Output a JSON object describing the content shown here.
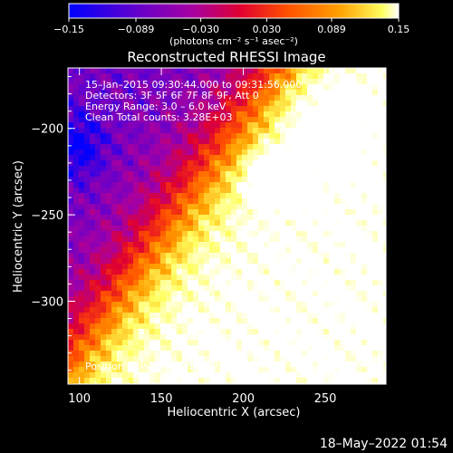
{
  "chart_data": {
    "type": "heatmap",
    "title": "Reconstructed RHESSI Image",
    "xlabel": "Heliocentric X (arcsec)",
    "ylabel": "Heliocentric Y (arcsec)",
    "xlim": [
      93,
      287
    ],
    "ylim": [
      -348,
      -165
    ],
    "x_ticks": [
      100,
      150,
      200,
      250
    ],
    "x_tick_labels": [
      "100",
      "150",
      "200",
      "250"
    ],
    "y_ticks": [
      -200,
      -250,
      -300
    ],
    "y_tick_labels": [
      "−200",
      "−250",
      "−300"
    ],
    "colorbar": {
      "min": -0.15,
      "max": 0.15,
      "ticks": [
        -0.15,
        -0.089,
        -0.03,
        0.03,
        0.089,
        0.15
      ],
      "tick_labels": [
        "−0.15",
        "−0.089",
        "−0.030",
        "0.030",
        "0.089",
        "0.15"
      ],
      "unit_label": "(photons cm⁻² s⁻¹ asec⁻²)"
    },
    "peak": {
      "x": 218,
      "y": -229,
      "value": 0.15
    },
    "annotations": [
      "15–Jan–2015 09:30:44.000 to 09:31:56.000",
      "Detectors: 3F 5F 6F 7F 8F 9F, Att 0",
      "Energy Range: 3.0 – 6.0 keV",
      "Clean      Total counts: 3.28E+03"
    ],
    "peak_label": "Position of Peak = [218,−229]",
    "grid": false,
    "colormap": [
      "#0000ff",
      "#6a00c8",
      "#a800a0",
      "#e00030",
      "#ff5000",
      "#ffa000",
      "#ffff60",
      "#ffffff"
    ]
  },
  "footer": {
    "timestamp": "18–May–2022 01:54"
  }
}
